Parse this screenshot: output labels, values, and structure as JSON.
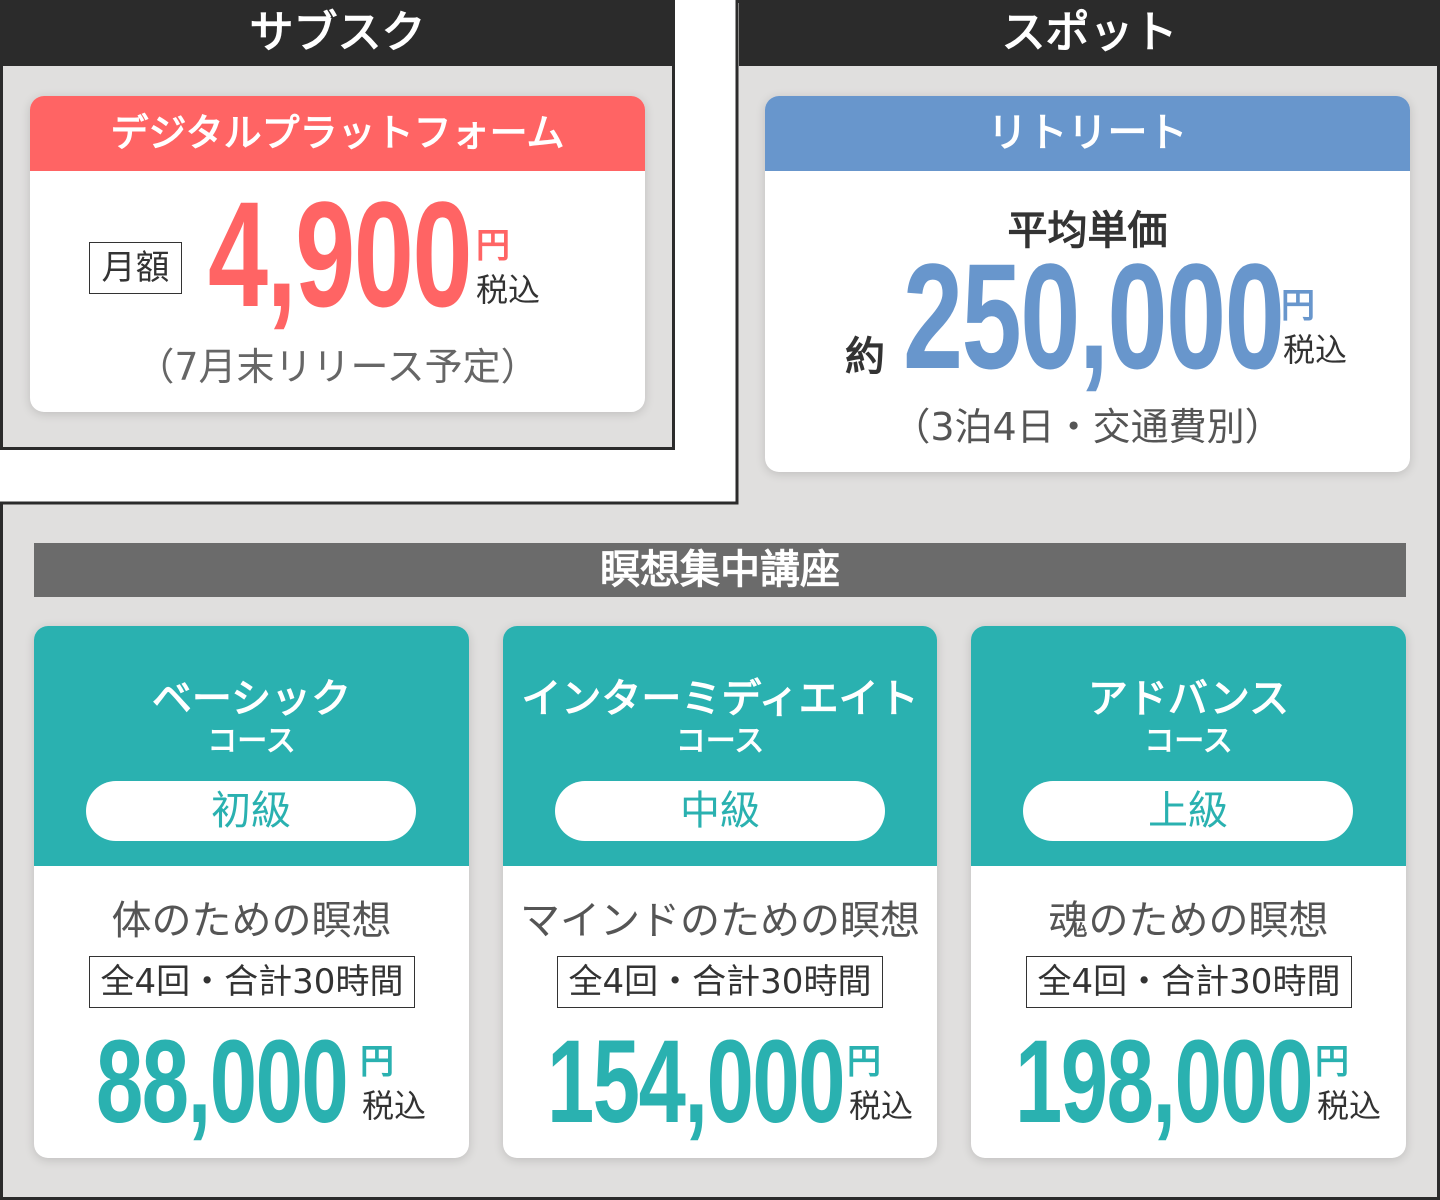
{
  "subscription": {
    "header": "サブスク",
    "card_title": "デジタルプラットフォーム",
    "label": "月額",
    "price": "4,900",
    "currency": "円",
    "tax": "税込",
    "note": "（7月末リリース予定）",
    "accent": "#ff6464"
  },
  "spot": {
    "header": "スポット",
    "card_title": "リトリート",
    "subtitle": "平均単価",
    "prefix": "約",
    "price": "250,000",
    "currency": "円",
    "tax": "税込",
    "note": "（3泊4日・交通費別）",
    "accent": "#6896cc"
  },
  "meditation": {
    "header": "瞑想集中講座",
    "accent": "#2ab1b0",
    "courses": [
      {
        "name": "ベーシック",
        "sub": "コース",
        "level": "初級",
        "desc": "体のための瞑想",
        "detail": "全4回・合計30時間",
        "price": "88,000",
        "currency": "円",
        "tax": "税込"
      },
      {
        "name": "インターミディエイト",
        "sub": "コース",
        "level": "中級",
        "desc": "マインドのための瞑想",
        "detail": "全4回・合計30時間",
        "price": "154,000",
        "currency": "円",
        "tax": "税込"
      },
      {
        "name": "アドバンス",
        "sub": "コース",
        "level": "上級",
        "desc": "魂のための瞑想",
        "detail": "全4回・合計30時間",
        "price": "198,000",
        "currency": "円",
        "tax": "税込"
      }
    ]
  }
}
